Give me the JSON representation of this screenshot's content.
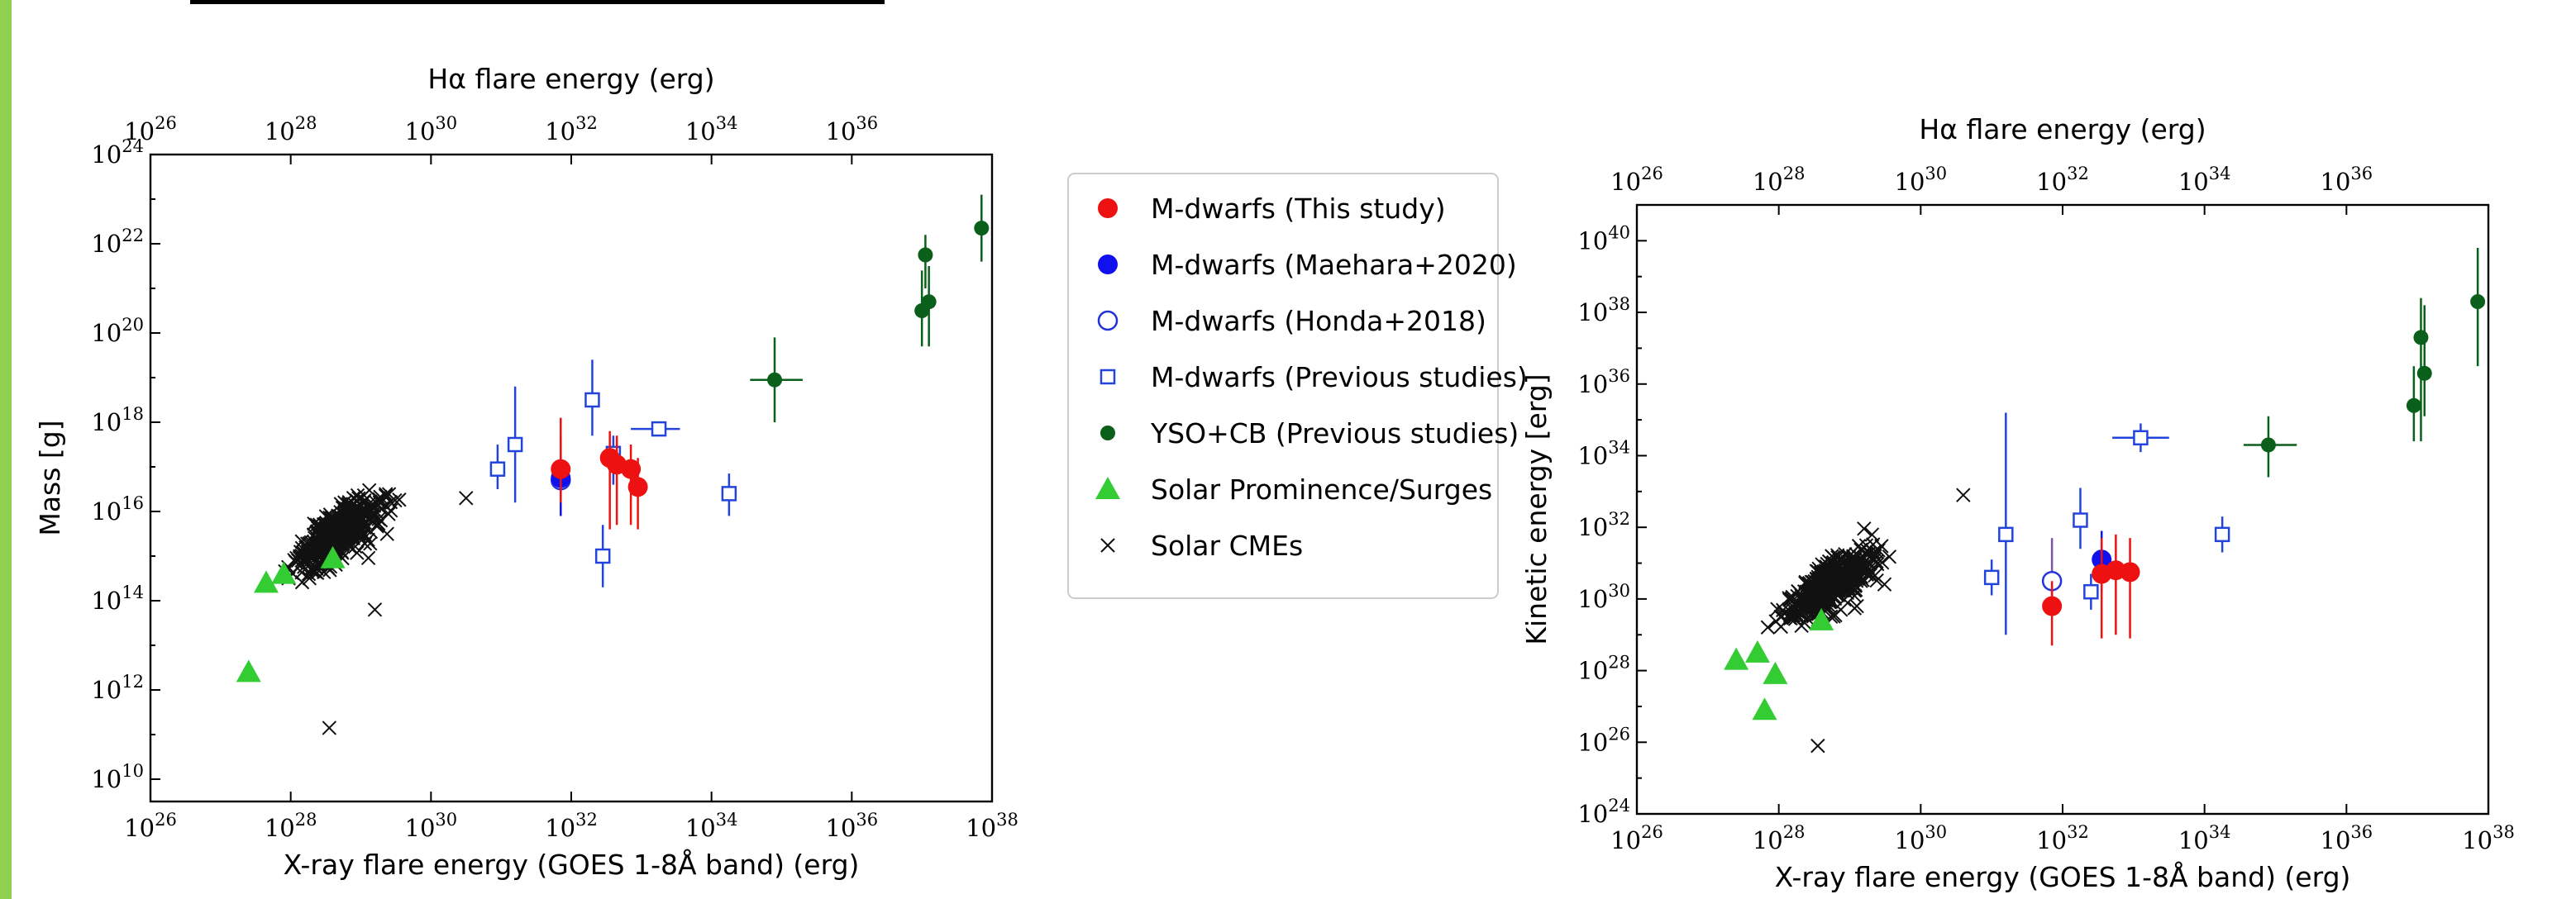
{
  "colors": {
    "this_study": "#ee1111",
    "maehara": "#1111ee",
    "honda": "#2233dd",
    "previous": "#2244dd",
    "yso": "#0a5f1a",
    "prominence": "#33cc33",
    "cme": "#111111"
  },
  "legend": {
    "entries": [
      {
        "label": "M-dwarfs (This study)",
        "marker": "filled-circle",
        "color": "#ee1111"
      },
      {
        "label": "M-dwarfs (Maehara+2020)",
        "marker": "filled-circle",
        "color": "#1111ee"
      },
      {
        "label": "M-dwarfs (Honda+2018)",
        "marker": "open-circle",
        "color": "#2233dd"
      },
      {
        "label": "M-dwarfs (Previous studies)",
        "marker": "open-square",
        "color": "#2244dd"
      },
      {
        "label": "YSO+CB (Previous studies)",
        "marker": "small-filled-circle",
        "color": "#0a5f1a"
      },
      {
        "label": "Solar Prominence/Surges",
        "marker": "triangle",
        "color": "#33cc33"
      },
      {
        "label": "Solar CMEs",
        "marker": "x",
        "color": "#111111"
      }
    ]
  },
  "chart_data": [
    {
      "type": "scatter",
      "log_scale": {
        "x": true,
        "y": true
      },
      "xlabel": "X-ray flare energy (GOES 1-8Å band) (erg)",
      "x2label": "Hα flare energy (erg)",
      "ylabel": "Mass [g]",
      "xlim_exp": [
        26,
        38
      ],
      "ylim_exp": [
        9.5,
        24
      ],
      "x_ticks_exp": [
        26,
        28,
        30,
        32,
        34,
        36,
        38
      ],
      "x2_ticks_exp": [
        26,
        28,
        30,
        32,
        34,
        36
      ],
      "y_ticks_exp": [
        10,
        12,
        14,
        16,
        18,
        20,
        22,
        24
      ],
      "grid": false,
      "series": [
        {
          "name": "M-dwarfs (This study)",
          "points": [
            {
              "x": 31.85,
              "y": 16.95,
              "ylo": 16.2,
              "yhi": 18.1
            },
            {
              "x": 32.55,
              "y": 17.2,
              "ylo": 15.6,
              "yhi": 17.8
            },
            {
              "x": 32.65,
              "y": 17.05,
              "ylo": 15.7,
              "yhi": 17.7
            },
            {
              "x": 32.85,
              "y": 16.95,
              "ylo": 15.7,
              "yhi": 17.5
            },
            {
              "x": 32.95,
              "y": 16.55,
              "ylo": 15.6,
              "yhi": 17.2
            }
          ]
        },
        {
          "name": "M-dwarfs (Maehara+2020)",
          "points": [
            {
              "x": 31.85,
              "y": 16.75,
              "ylo": 15.9,
              "yhi": 17.6
            }
          ]
        },
        {
          "name": "M-dwarfs (Honda+2018)",
          "points": [
            {
              "x": 31.85,
              "y": 16.7,
              "ylo": 15.9,
              "yhi": 17.7
            }
          ]
        },
        {
          "name": "M-dwarfs (Previous studies)",
          "points": [
            {
              "x": 30.95,
              "y": 16.95,
              "ylo": 16.5,
              "yhi": 17.5
            },
            {
              "x": 31.2,
              "y": 17.5,
              "ylo": 16.2,
              "yhi": 18.8
            },
            {
              "x": 32.3,
              "y": 18.5,
              "ylo": 17.7,
              "yhi": 19.4
            },
            {
              "x": 32.45,
              "y": 15.0,
              "ylo": 14.3,
              "yhi": 15.7
            },
            {
              "x": 32.6,
              "y": 17.3,
              "ylo": 16.6,
              "yhi": 17.7
            },
            {
              "x": 33.25,
              "y": 17.85,
              "xlo": 32.85,
              "xhi": 33.55
            },
            {
              "x": 34.25,
              "y": 16.4,
              "ylo": 15.9,
              "yhi": 16.85
            }
          ]
        },
        {
          "name": "YSO+CB (Previous studies)",
          "points": [
            {
              "x": 34.9,
              "y": 18.95,
              "ylo": 18.0,
              "yhi": 19.9,
              "xlo": 34.55,
              "xhi": 35.3
            },
            {
              "x": 37.0,
              "y": 20.5,
              "ylo": 19.7,
              "yhi": 21.4
            },
            {
              "x": 37.1,
              "y": 20.7,
              "ylo": 19.7,
              "yhi": 21.5
            },
            {
              "x": 37.05,
              "y": 21.75,
              "ylo": 21.0,
              "yhi": 22.2
            },
            {
              "x": 37.85,
              "y": 22.35,
              "ylo": 21.6,
              "yhi": 23.1
            }
          ]
        },
        {
          "name": "Solar Prominence/Surges",
          "points": [
            {
              "x": 27.4,
              "y": 12.4
            },
            {
              "x": 27.65,
              "y": 14.4
            },
            {
              "x": 27.9,
              "y": 14.6
            },
            {
              "x": 28.6,
              "y": 14.95
            }
          ]
        },
        {
          "name": "Solar CMEs",
          "cluster": {
            "x_range": [
              27.2,
              30.2
            ],
            "y_range": [
              13.5,
              17.5
            ],
            "count": 420
          },
          "extra_points": [
            {
              "x": 28.55,
              "y": 11.15
            },
            {
              "x": 29.2,
              "y": 13.8
            },
            {
              "x": 30.5,
              "y": 16.3
            }
          ]
        }
      ]
    },
    {
      "type": "scatter",
      "log_scale": {
        "x": true,
        "y": true
      },
      "xlabel": "X-ray flare energy (GOES 1-8Å band) (erg)",
      "x2label": "Hα flare energy (erg)",
      "ylabel": "Kinetic energy [erg]",
      "xlim_exp": [
        26,
        38
      ],
      "ylim_exp": [
        24,
        41
      ],
      "x_ticks_exp": [
        26,
        28,
        30,
        32,
        34,
        36,
        38
      ],
      "x2_ticks_exp": [
        26,
        28,
        30,
        32,
        34,
        36
      ],
      "y_ticks_exp": [
        24,
        26,
        28,
        30,
        32,
        34,
        36,
        38,
        40
      ],
      "grid": false,
      "series": [
        {
          "name": "M-dwarfs (This study)",
          "points": [
            {
              "x": 31.85,
              "y": 29.8,
              "ylo": 28.7,
              "yhi": 30.5
            },
            {
              "x": 32.55,
              "y": 30.7,
              "ylo": 28.9,
              "yhi": 31.7
            },
            {
              "x": 32.75,
              "y": 30.8,
              "ylo": 29.0,
              "yhi": 31.8
            },
            {
              "x": 32.95,
              "y": 30.75,
              "ylo": 28.9,
              "yhi": 31.7
            }
          ]
        },
        {
          "name": "M-dwarfs (Maehara+2020)",
          "points": [
            {
              "x": 32.55,
              "y": 31.1,
              "ylo": 30.2,
              "yhi": 31.9
            }
          ]
        },
        {
          "name": "M-dwarfs (Honda+2018)",
          "points": [
            {
              "x": 31.85,
              "y": 30.5,
              "ylo": 29.8,
              "yhi": 31.7
            }
          ]
        },
        {
          "name": "M-dwarfs (Previous studies)",
          "points": [
            {
              "x": 31.0,
              "y": 30.6,
              "ylo": 30.1,
              "yhi": 31.1
            },
            {
              "x": 31.2,
              "y": 31.8,
              "ylo": 29.0,
              "yhi": 35.2
            },
            {
              "x": 32.25,
              "y": 32.2,
              "ylo": 31.4,
              "yhi": 33.1
            },
            {
              "x": 32.4,
              "y": 30.2,
              "ylo": 29.7,
              "yhi": 30.7
            },
            {
              "x": 33.1,
              "y": 34.5,
              "ylo": 34.1,
              "yhi": 34.9,
              "xlo": 32.7,
              "xhi": 33.5
            },
            {
              "x": 34.25,
              "y": 31.8,
              "ylo": 31.3,
              "yhi": 32.3
            }
          ]
        },
        {
          "name": "YSO+CB (Previous studies)",
          "points": [
            {
              "x": 34.9,
              "y": 34.3,
              "ylo": 33.4,
              "yhi": 35.1,
              "xlo": 34.55,
              "xhi": 35.3
            },
            {
              "x": 36.95,
              "y": 35.4,
              "ylo": 34.4,
              "yhi": 36.5
            },
            {
              "x": 37.05,
              "y": 37.3,
              "ylo": 34.4,
              "yhi": 38.4
            },
            {
              "x": 37.1,
              "y": 36.3,
              "ylo": 35.1,
              "yhi": 38.2
            },
            {
              "x": 37.85,
              "y": 38.3,
              "ylo": 36.5,
              "yhi": 39.8
            }
          ]
        },
        {
          "name": "Solar Prominence/Surges",
          "points": [
            {
              "x": 27.4,
              "y": 28.3
            },
            {
              "x": 27.7,
              "y": 28.5
            },
            {
              "x": 27.8,
              "y": 26.9
            },
            {
              "x": 27.95,
              "y": 27.9
            },
            {
              "x": 28.6,
              "y": 29.4
            }
          ]
        },
        {
          "name": "Solar CMEs",
          "cluster": {
            "x_range": [
              27.2,
              30.3
            ],
            "y_range": [
              27.8,
              33.0
            ],
            "count": 420
          },
          "extra_points": [
            {
              "x": 28.55,
              "y": 25.9
            },
            {
              "x": 29.1,
              "y": 29.8
            },
            {
              "x": 30.6,
              "y": 32.9
            }
          ]
        }
      ]
    }
  ]
}
